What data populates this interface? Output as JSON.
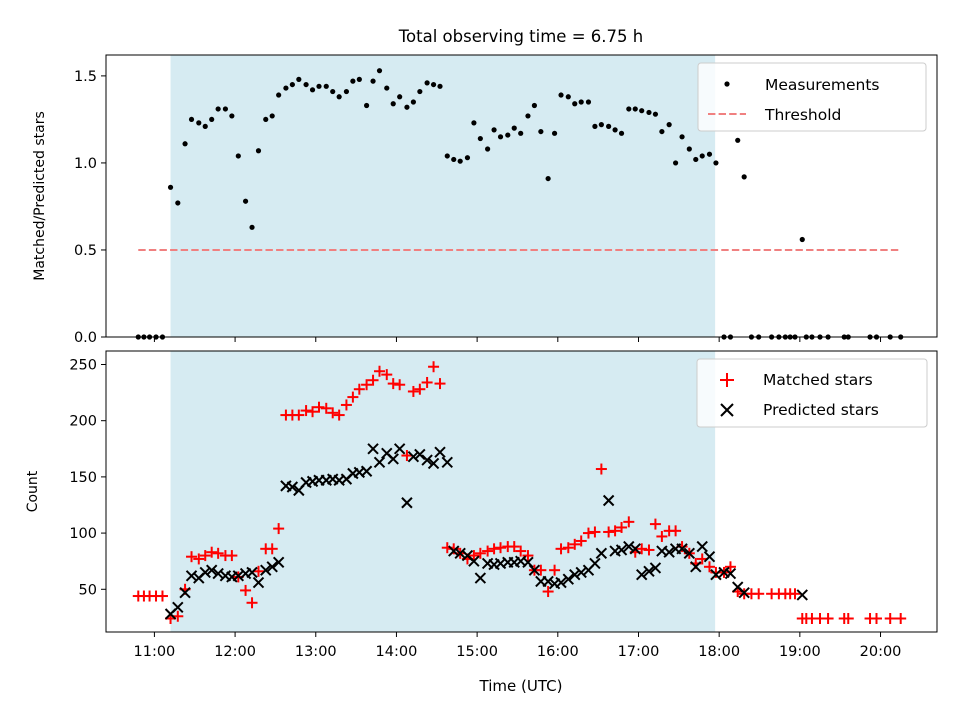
{
  "title": "Total observing time = 6.75 h",
  "colors": {
    "shade": "#add8e6",
    "threshold": "#f08080",
    "matched": "#ff0000",
    "predicted": "#000000",
    "measurement": "#000000"
  },
  "chart_data": [
    {
      "type": "scatter",
      "ylabel": "Matched/Predicted stars",
      "xlim_hours": [
        10.4,
        20.7
      ],
      "ylim": [
        0,
        1.62
      ],
      "yticks": [
        "0.0",
        "0.5",
        "1.0",
        "1.5"
      ],
      "shaded_interval_hours": [
        11.2,
        17.95
      ],
      "legend": {
        "placement": "top-right",
        "entries": [
          "Measurements",
          "Threshold"
        ]
      },
      "threshold": {
        "name": "Threshold",
        "value": 0.5,
        "x_range_hours": [
          10.8,
          20.25
        ]
      },
      "series": [
        {
          "name": "Measurements",
          "x": [
            10.8,
            10.87,
            10.94,
            11.02,
            11.1,
            11.2,
            11.29,
            11.38,
            11.46,
            11.55,
            11.63,
            11.71,
            11.79,
            11.88,
            11.96,
            12.04,
            12.13,
            12.21,
            12.29,
            12.38,
            12.46,
            12.54,
            12.63,
            12.71,
            12.79,
            12.88,
            12.96,
            13.04,
            13.13,
            13.21,
            13.29,
            13.38,
            13.46,
            13.54,
            13.63,
            13.71,
            13.79,
            13.88,
            13.96,
            14.04,
            14.13,
            14.21,
            14.29,
            14.38,
            14.46,
            14.54,
            14.63,
            14.71,
            14.79,
            14.88,
            14.96,
            15.04,
            15.13,
            15.21,
            15.29,
            15.38,
            15.46,
            15.54,
            15.63,
            15.71,
            15.79,
            15.88,
            15.96,
            16.04,
            16.13,
            16.21,
            16.29,
            16.38,
            16.46,
            16.54,
            16.63,
            16.71,
            16.79,
            16.88,
            16.96,
            17.04,
            17.13,
            17.21,
            17.29,
            17.38,
            17.46,
            17.54,
            17.63,
            17.71,
            17.79,
            17.88,
            17.96,
            18.06,
            18.14,
            18.23,
            18.31,
            18.4,
            18.49,
            18.65,
            18.74,
            18.82,
            18.88,
            18.94,
            19.03,
            19.08,
            19.15,
            19.25,
            19.35,
            19.55,
            19.6,
            19.87,
            19.95,
            20.12,
            20.25
          ],
          "y": [
            0,
            0,
            0,
            0,
            0,
            0.86,
            0.77,
            1.11,
            1.25,
            1.23,
            1.21,
            1.25,
            1.31,
            1.31,
            1.27,
            1.04,
            0.78,
            0.63,
            1.07,
            1.25,
            1.27,
            1.39,
            1.43,
            1.45,
            1.48,
            1.45,
            1.42,
            1.44,
            1.44,
            1.41,
            1.38,
            1.41,
            1.47,
            1.48,
            1.33,
            1.47,
            1.53,
            1.43,
            1.34,
            1.38,
            1.32,
            1.35,
            1.41,
            1.46,
            1.45,
            1.44,
            1.04,
            1.02,
            1.01,
            1.03,
            1.23,
            1.14,
            1.08,
            1.19,
            1.15,
            1.16,
            1.2,
            1.17,
            1.27,
            1.33,
            1.18,
            0.91,
            1.17,
            1.39,
            1.38,
            1.34,
            1.35,
            1.35,
            1.21,
            1.22,
            1.21,
            1.19,
            1.17,
            1.31,
            1.31,
            1.3,
            1.29,
            1.28,
            1.18,
            1.22,
            1.0,
            1.15,
            1.08,
            1.02,
            1.04,
            1.05,
            1.0,
            0,
            0,
            1.13,
            0.92,
            0,
            0,
            0,
            0,
            0,
            0,
            0,
            0.56,
            0,
            0,
            0,
            0,
            0,
            0,
            0,
            0,
            0,
            0
          ]
        }
      ]
    },
    {
      "type": "scatter",
      "xlabel": "Time (UTC)",
      "ylabel": "Count",
      "xlim_hours": [
        10.4,
        20.7
      ],
      "ylim": [
        12,
        262
      ],
      "yticks": [
        "50",
        "100",
        "150",
        "200",
        "250"
      ],
      "xticks": [
        "11:00",
        "12:00",
        "13:00",
        "14:00",
        "15:00",
        "16:00",
        "17:00",
        "18:00",
        "19:00",
        "20:00"
      ],
      "xtick_hours": [
        11,
        12,
        13,
        14,
        15,
        16,
        17,
        18,
        19,
        20
      ],
      "shaded_interval_hours": [
        11.2,
        17.95
      ],
      "legend": {
        "placement": "top-right",
        "entries": [
          "Matched stars",
          "Predicted stars"
        ]
      },
      "series": [
        {
          "name": "Matched stars",
          "marker": "+",
          "x": [
            10.8,
            10.87,
            10.94,
            11.02,
            11.1,
            11.2,
            11.29,
            11.38,
            11.46,
            11.55,
            11.63,
            11.71,
            11.79,
            11.88,
            11.96,
            12.04,
            12.13,
            12.21,
            12.29,
            12.38,
            12.46,
            12.54,
            12.63,
            12.71,
            12.79,
            12.88,
            12.96,
            13.04,
            13.13,
            13.21,
            13.29,
            13.38,
            13.46,
            13.54,
            13.63,
            13.71,
            13.79,
            13.88,
            13.96,
            14.04,
            14.13,
            14.21,
            14.29,
            14.38,
            14.46,
            14.54,
            14.63,
            14.71,
            14.79,
            14.88,
            14.96,
            15.04,
            15.13,
            15.21,
            15.29,
            15.38,
            15.46,
            15.54,
            15.63,
            15.71,
            15.79,
            15.88,
            15.96,
            16.04,
            16.13,
            16.21,
            16.29,
            16.38,
            16.46,
            16.54,
            16.63,
            16.71,
            16.79,
            16.88,
            16.96,
            17.04,
            17.13,
            17.21,
            17.29,
            17.38,
            17.46,
            17.54,
            17.63,
            17.71,
            17.79,
            17.88,
            17.96,
            18.06,
            18.14,
            18.23,
            18.31,
            18.4,
            18.49,
            18.65,
            18.74,
            18.82,
            18.88,
            18.94,
            19.03,
            19.08,
            19.15,
            19.25,
            19.35,
            19.55,
            19.6,
            19.87,
            19.95,
            20.12,
            20.25
          ],
          "y": [
            44,
            44,
            44,
            44,
            44,
            24,
            26,
            50,
            79,
            77,
            80,
            83,
            82,
            80,
            80,
            61,
            49,
            38,
            66,
            86,
            86,
            104,
            205,
            205,
            205,
            209,
            208,
            212,
            211,
            207,
            205,
            214,
            221,
            228,
            232,
            236,
            244,
            241,
            233,
            232,
            169,
            226,
            228,
            234,
            248,
            233,
            87,
            86,
            82,
            77,
            80,
            82,
            84,
            86,
            87,
            88,
            88,
            84,
            80,
            67,
            67,
            48,
            67,
            86,
            87,
            90,
            93,
            100,
            101,
            157,
            101,
            102,
            105,
            110,
            83,
            86,
            85,
            108,
            97,
            102,
            102,
            88,
            82,
            73,
            77,
            70,
            65,
            65,
            70,
            48,
            46,
            46,
            46,
            46,
            46,
            46,
            46,
            46,
            24,
            24,
            24,
            24,
            24,
            24,
            24,
            24,
            24,
            24,
            24
          ]
        },
        {
          "name": "Predicted stars",
          "marker": "x",
          "x": [
            11.2,
            11.29,
            11.38,
            11.46,
            11.55,
            11.63,
            11.71,
            11.79,
            11.88,
            11.96,
            12.04,
            12.13,
            12.21,
            12.29,
            12.38,
            12.46,
            12.54,
            12.63,
            12.71,
            12.79,
            12.88,
            12.96,
            13.04,
            13.13,
            13.21,
            13.29,
            13.38,
            13.46,
            13.54,
            13.63,
            13.71,
            13.79,
            13.88,
            13.96,
            14.04,
            14.13,
            14.21,
            14.29,
            14.38,
            14.46,
            14.54,
            14.63,
            14.71,
            14.79,
            14.88,
            14.96,
            15.04,
            15.13,
            15.21,
            15.29,
            15.38,
            15.46,
            15.54,
            15.63,
            15.71,
            15.79,
            15.88,
            15.96,
            16.04,
            16.13,
            16.21,
            16.29,
            16.38,
            16.46,
            16.54,
            16.63,
            16.71,
            16.79,
            16.88,
            16.96,
            17.04,
            17.13,
            17.21,
            17.29,
            17.38,
            17.46,
            17.54,
            17.63,
            17.71,
            17.79,
            17.88,
            17.96,
            18.06,
            18.14,
            18.23,
            18.31,
            19.03
          ],
          "y": [
            28,
            34,
            47,
            62,
            60,
            65,
            67,
            64,
            62,
            61,
            62,
            64,
            65,
            56,
            67,
            70,
            74,
            142,
            141,
            138,
            145,
            146,
            147,
            147,
            148,
            147,
            148,
            153,
            154,
            155,
            175,
            163,
            171,
            166,
            175,
            127,
            168,
            170,
            165,
            162,
            172,
            163,
            84,
            82,
            80,
            75,
            60,
            73,
            72,
            73,
            74,
            74,
            75,
            74,
            67,
            57,
            57,
            55,
            56,
            59,
            63,
            65,
            67,
            73,
            82,
            129,
            84,
            85,
            88,
            86,
            63,
            66,
            69,
            84,
            83,
            86,
            86,
            82,
            70,
            88,
            79,
            63,
            65,
            64,
            52,
            47,
            45
          ]
        }
      ]
    }
  ]
}
